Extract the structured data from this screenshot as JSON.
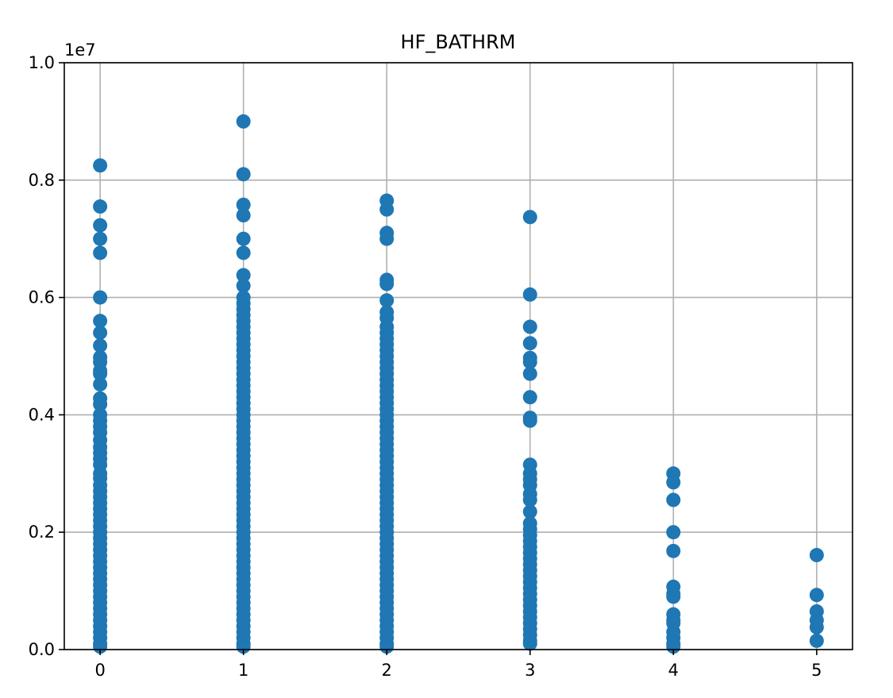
{
  "chart_data": {
    "type": "scatter",
    "title": "HF_BATHRM",
    "xlabel": "",
    "ylabel": "",
    "x_ticks": [
      0,
      1,
      2,
      3,
      4,
      5
    ],
    "y_ticks": [
      "0.0",
      "0.2",
      "0.4",
      "0.6",
      "0.8",
      "1.0"
    ],
    "y_offset_label": "1e7",
    "xlim": [
      -0.25,
      5.25
    ],
    "ylim": [
      0,
      10000000
    ],
    "grid": true,
    "marker_color": "#1f77b4",
    "series": [
      {
        "x": 0,
        "values": [
          8250000,
          7550000,
          7230000,
          7000000,
          6760000,
          6000000,
          5600000,
          5400000,
          5180000,
          4980000,
          4900000,
          4750000,
          4700000,
          4520000,
          4280000,
          4180000,
          4000000,
          3900000,
          3800000,
          3700000,
          3570000,
          3450000,
          3350000,
          3250000,
          3150000,
          3000000,
          2920000,
          2800000,
          2700000,
          2600000,
          2500000,
          2400000,
          2300000,
          2200000,
          2100000,
          2000000,
          1900000,
          1800000,
          1700000,
          1600000,
          1500000,
          1400000,
          1300000,
          1200000,
          1100000,
          1000000,
          900000,
          800000,
          700000,
          600000,
          500000,
          400000,
          300000,
          200000,
          100000,
          50000
        ]
      },
      {
        "x": 1,
        "values": [
          9000000,
          8100000,
          7580000,
          7400000,
          7000000,
          6760000,
          6380000,
          6200000,
          6000000,
          5900000,
          5800000,
          5700000,
          5600000,
          5500000,
          5400000,
          5300000,
          5200000,
          5100000,
          5000000,
          4900000,
          4800000,
          4700000,
          4600000,
          4500000,
          4400000,
          4300000,
          4200000,
          4100000,
          4000000,
          3900000,
          3800000,
          3700000,
          3600000,
          3500000,
          3400000,
          3300000,
          3200000,
          3100000,
          3000000,
          2900000,
          2800000,
          2700000,
          2600000,
          2500000,
          2400000,
          2300000,
          2200000,
          2100000,
          2000000,
          1900000,
          1800000,
          1700000,
          1600000,
          1500000,
          1400000,
          1300000,
          1200000,
          1100000,
          1000000,
          900000,
          800000,
          700000,
          600000,
          500000,
          400000,
          300000,
          200000,
          100000,
          50000
        ]
      },
      {
        "x": 2,
        "values": [
          7650000,
          7500000,
          7100000,
          7000000,
          6300000,
          6230000,
          5950000,
          5750000,
          5650000,
          5500000,
          5400000,
          5300000,
          5200000,
          5100000,
          5000000,
          4900000,
          4800000,
          4700000,
          4600000,
          4500000,
          4400000,
          4300000,
          4200000,
          4100000,
          4000000,
          3900000,
          3800000,
          3700000,
          3600000,
          3500000,
          3400000,
          3300000,
          3200000,
          3100000,
          3000000,
          2900000,
          2800000,
          2700000,
          2600000,
          2500000,
          2400000,
          2300000,
          2200000,
          2100000,
          2000000,
          1900000,
          1800000,
          1700000,
          1600000,
          1500000,
          1400000,
          1300000,
          1200000,
          1100000,
          1000000,
          900000,
          800000,
          700000,
          600000,
          500000,
          400000,
          300000,
          200000,
          100000,
          50000
        ]
      },
      {
        "x": 3,
        "values": [
          7370000,
          6050000,
          5500000,
          5220000,
          4970000,
          4900000,
          4700000,
          4300000,
          3950000,
          3900000,
          3150000,
          3000000,
          2900000,
          2800000,
          2650000,
          2550000,
          2350000,
          2150000,
          2050000,
          1950000,
          1850000,
          1750000,
          1650000,
          1550000,
          1450000,
          1350000,
          1250000,
          1150000,
          1050000,
          950000,
          850000,
          750000,
          650000,
          550000,
          450000,
          350000,
          250000,
          150000,
          100000
        ]
      },
      {
        "x": 4,
        "values": [
          3000000,
          2850000,
          2550000,
          2000000,
          1680000,
          1070000,
          950000,
          900000,
          600000,
          500000,
          450000,
          300000,
          200000,
          100000,
          50000
        ]
      },
      {
        "x": 5,
        "values": [
          1610000,
          930000,
          650000,
          500000,
          380000,
          150000
        ]
      }
    ]
  }
}
